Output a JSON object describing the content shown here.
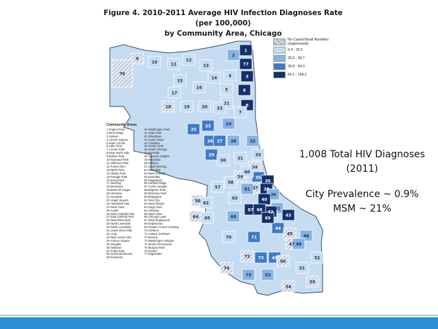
{
  "figure": {
    "title_line1": "Figure 4. 2010-2011 Average HIV Infection Diagnoses Rate (per 100,000)",
    "title_line2": "by Community Area, Chicago"
  },
  "legend": {
    "items": [
      {
        "label": "No Cases/Small Numbers (suppressed)",
        "color": "#dfe6ef",
        "hatched": true
      },
      {
        "label": "9.4 - 25.5",
        "color": "#c6dcf2"
      },
      {
        "label": "25.6 - 39.7",
        "color": "#86b3e6"
      },
      {
        "label": "39.8 - 64.0",
        "color": "#3f7ac7"
      },
      {
        "label": "64.1 - 108.2",
        "color": "#14306b"
      }
    ]
  },
  "community_areas": {
    "heading": "Community Areas",
    "col1": [
      "1 Rogers Park",
      "2 West Ridge",
      "3 Uptown",
      "4 Lincoln Square",
      "5 North Center",
      "6 Lake View",
      "7 Lincoln Park",
      "8 Near North Side",
      "9 Edison Park",
      "10 Norwood Park",
      "11 Jefferson Park",
      "12 Forest Glen",
      "13 North Park",
      "14 Albany Park",
      "15 Portage Park",
      "16 Irving Park",
      "17 Dunning",
      "18 Montclare",
      "19 Belmont Cragin",
      "20 Hermosa",
      "21 Avondale",
      "22 Logan Square",
      "23 Humboldt Park",
      "24 West Town",
      "25 Austin",
      "26 West Garfield Park",
      "27 East Garfield Park",
      "28 Near West Side",
      "29 North Lawndale",
      "30 South Lawndale",
      "31 Lower West Side",
      "32 Loop",
      "33 Near South Side",
      "34 Armour Square",
      "35 Douglas",
      "36 Oakland",
      "37 Fuller Park",
      "38 Grand Boulevard",
      "39 Kenwood"
    ],
    "col2": [
      "40 Washington Park",
      "41 Hyde Park",
      "42 Woodlawn",
      "43 South Shore",
      "44 Chatham",
      "45 Avalon Park",
      "46 South Chicago",
      "47 Burnside",
      "48 Calumet Heights",
      "49 Roseland",
      "50 Pullman",
      "51 South Deering",
      "52 East Side",
      "53 West Pullman",
      "54 Riverdale",
      "55 Hegewisch",
      "56 Garfield Ridge",
      "57 Archer Heights",
      "58 Brighton Park",
      "59 McKinley Park",
      "60 Bridgeport",
      "61 New City",
      "62 West Elsdon",
      "63 Gage Park",
      "64 Clearing",
      "65 West Lawn",
      "66 Chicago Lawn",
      "67 West Englewood",
      "68 Englewood",
      "69 Greater Grand Crossing",
      "70 Ashburn",
      "71 Auburn Gresham",
      "72 Beverly",
      "73 Washington Heights",
      "74 Mount Greenwood",
      "75 Morgan Park",
      "76 O'Hare",
      "77 Edgewater"
    ]
  },
  "map_labels": {
    "chicago_areas": [
      {
        "num": "1",
        "cls": 4
      },
      {
        "num": "77",
        "cls": 4
      },
      {
        "num": "3",
        "cls": 4
      },
      {
        "num": "6",
        "cls": 4
      },
      {
        "num": "8",
        "cls": 4
      },
      {
        "num": "2",
        "cls": 2
      },
      {
        "num": "4",
        "cls": 1
      },
      {
        "num": "5",
        "cls": 1
      },
      {
        "num": "7",
        "cls": 1
      },
      {
        "num": "9",
        "cls": 0
      },
      {
        "num": "10",
        "cls": 1
      },
      {
        "num": "11",
        "cls": 1
      },
      {
        "num": "12",
        "cls": 1
      },
      {
        "num": "13",
        "cls": 1
      },
      {
        "num": "14",
        "cls": 1
      },
      {
        "num": "15",
        "cls": 1
      },
      {
        "num": "16",
        "cls": 1
      },
      {
        "num": "17",
        "cls": 1
      },
      {
        "num": "18",
        "cls": 0
      },
      {
        "num": "19",
        "cls": 1
      },
      {
        "num": "20",
        "cls": 1
      },
      {
        "num": "21",
        "cls": 1
      },
      {
        "num": "22",
        "cls": 1
      },
      {
        "num": "24",
        "cls": 2
      },
      {
        "num": "23",
        "cls": 3
      },
      {
        "num": "25",
        "cls": 3
      },
      {
        "num": "26",
        "cls": 3
      },
      {
        "num": "27",
        "cls": 3
      },
      {
        "num": "28",
        "cls": 2
      },
      {
        "num": "29",
        "cls": 3
      },
      {
        "num": "30",
        "cls": 1
      },
      {
        "num": "31",
        "cls": 1
      },
      {
        "num": "32",
        "cls": 2
      },
      {
        "num": "33",
        "cls": 1
      },
      {
        "num": "34",
        "cls": 0
      },
      {
        "num": "35",
        "cls": 3
      },
      {
        "num": "36",
        "cls": 4
      },
      {
        "num": "37",
        "cls": 0
      },
      {
        "num": "38",
        "cls": 4
      },
      {
        "num": "39",
        "cls": 2
      },
      {
        "num": "40",
        "cls": 4
      },
      {
        "num": "41",
        "cls": 2
      },
      {
        "num": "42",
        "cls": 4
      },
      {
        "num": "43",
        "cls": 4
      },
      {
        "num": "44",
        "cls": 3
      },
      {
        "num": "45",
        "cls": 0
      },
      {
        "num": "46",
        "cls": 2
      },
      {
        "num": "47",
        "cls": 0
      },
      {
        "num": "48",
        "cls": 2
      },
      {
        "num": "49",
        "cls": 3
      },
      {
        "num": "50",
        "cls": 0
      },
      {
        "num": "51",
        "cls": 1
      },
      {
        "num": "52",
        "cls": 1
      },
      {
        "num": "53",
        "cls": 2
      },
      {
        "num": "54",
        "cls": 0
      },
      {
        "num": "55",
        "cls": 0
      },
      {
        "num": "56",
        "cls": 0
      },
      {
        "num": "57",
        "cls": 1
      },
      {
        "num": "58",
        "cls": 1
      },
      {
        "num": "59",
        "cls": 0
      },
      {
        "num": "60",
        "cls": 1
      },
      {
        "num": "61",
        "cls": 2
      },
      {
        "num": "62",
        "cls": 1
      },
      {
        "num": "63",
        "cls": 1
      },
      {
        "num": "64",
        "cls": 0
      },
      {
        "num": "65",
        "cls": 1
      },
      {
        "num": "66",
        "cls": 2
      },
      {
        "num": "67",
        "cls": 4
      },
      {
        "num": "68",
        "cls": 4
      },
      {
        "num": "69",
        "cls": 4
      },
      {
        "num": "70",
        "cls": 1
      },
      {
        "num": "71",
        "cls": 3
      },
      {
        "num": "72",
        "cls": 0
      },
      {
        "num": "73",
        "cls": 3
      },
      {
        "num": "74",
        "cls": 0
      },
      {
        "num": "75",
        "cls": 2
      },
      {
        "num": "76",
        "cls": 0
      }
    ]
  },
  "info": {
    "line1": "1,008 Total HIV Diagnoses",
    "line2": "(2011)",
    "line3": "City Prevalence ~ 0.9%",
    "line4": "MSM ~ 21%"
  },
  "colors": {
    "footer_bar": "#2a8fd6",
    "footer_line": "#9fd0f1"
  }
}
